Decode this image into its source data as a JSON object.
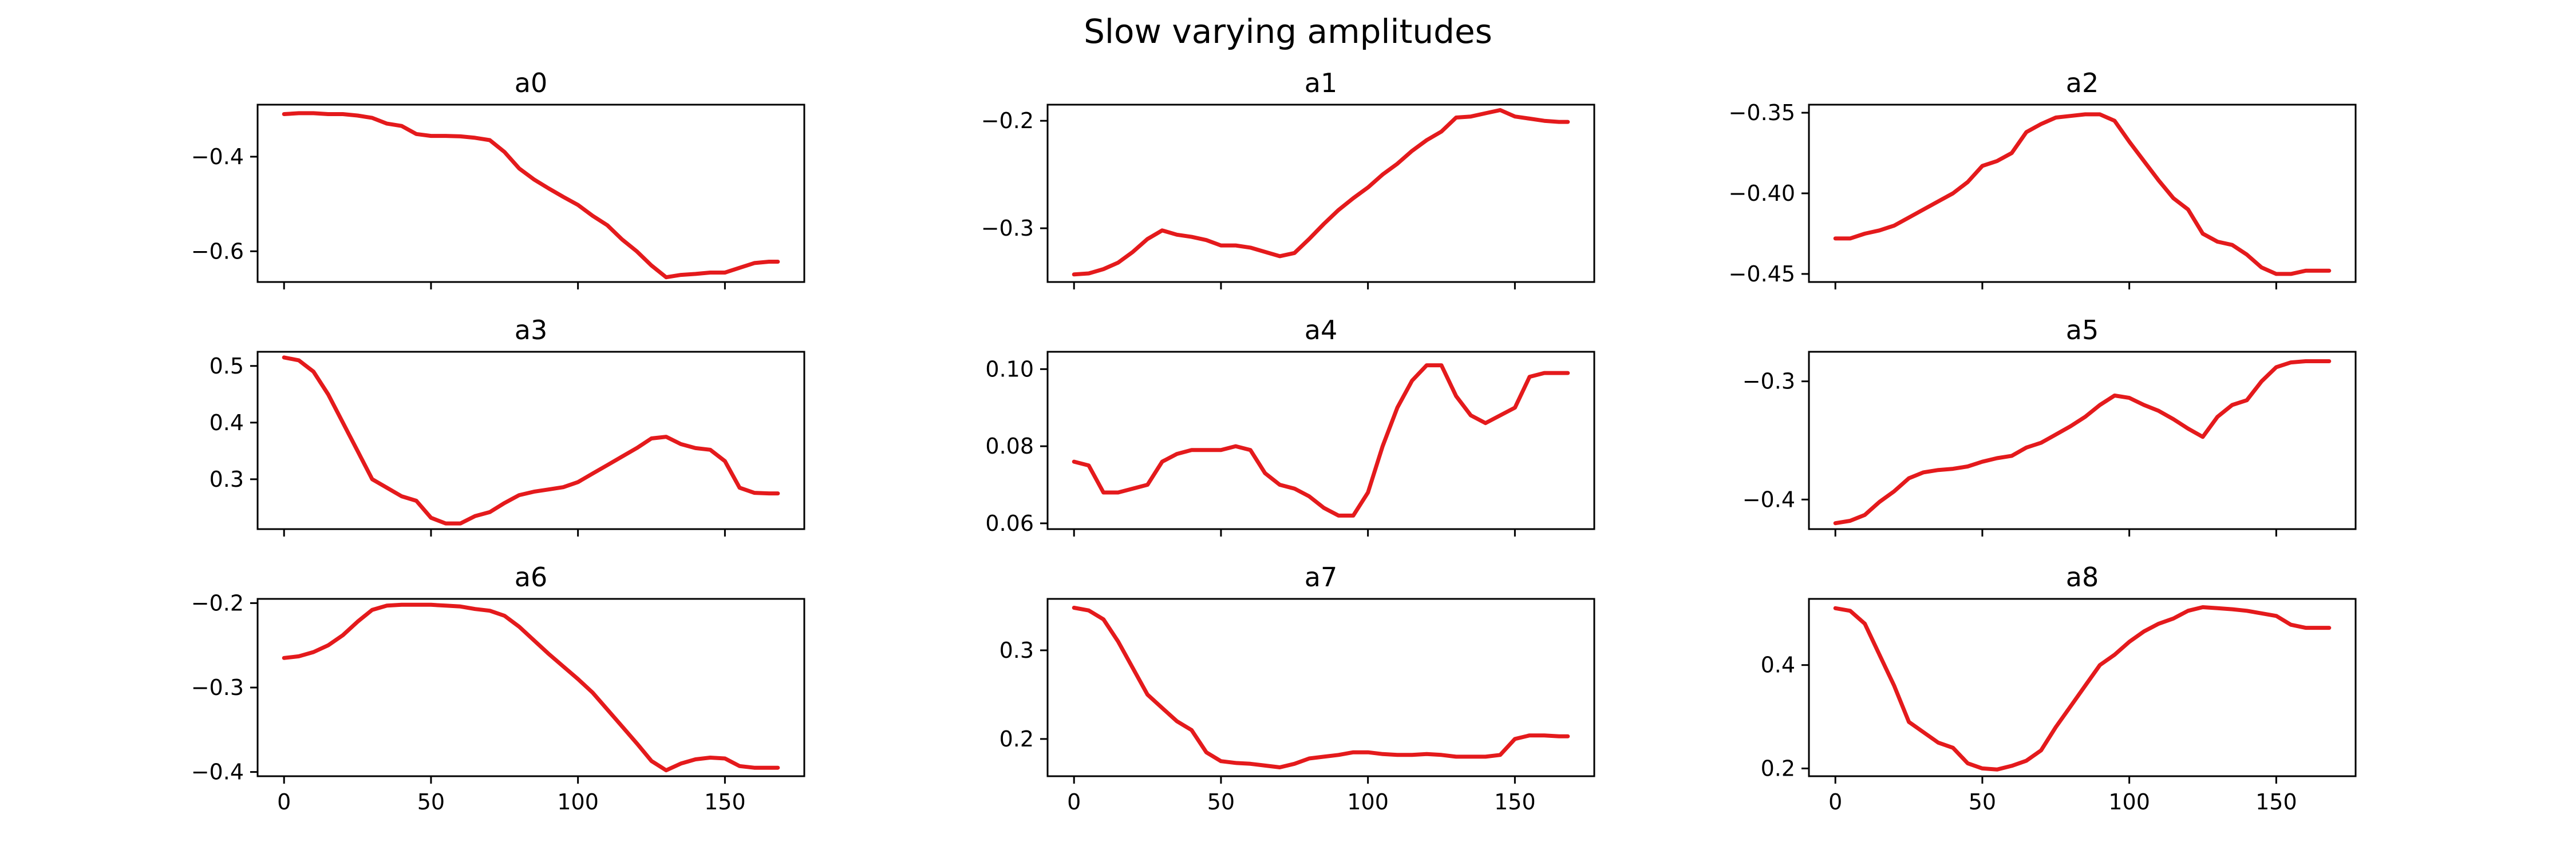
{
  "title": "Slow varying amplitudes",
  "colors": {
    "line": "#e41a1c"
  },
  "chart_data": [
    {
      "type": "line",
      "title": "a0",
      "x": [
        0,
        5,
        10,
        15,
        20,
        25,
        30,
        35,
        40,
        45,
        50,
        55,
        60,
        65,
        70,
        75,
        80,
        85,
        90,
        95,
        100,
        105,
        110,
        115,
        120,
        125,
        130,
        135,
        140,
        145,
        150,
        155,
        160,
        165,
        168
      ],
      "values": [
        -0.31,
        -0.308,
        -0.308,
        -0.31,
        -0.31,
        -0.313,
        -0.318,
        -0.33,
        -0.335,
        -0.352,
        -0.356,
        -0.356,
        -0.357,
        -0.36,
        -0.365,
        -0.39,
        -0.425,
        -0.448,
        -0.467,
        -0.485,
        -0.502,
        -0.525,
        -0.545,
        -0.575,
        -0.6,
        -0.63,
        -0.655,
        -0.65,
        -0.648,
        -0.645,
        -0.645,
        -0.635,
        -0.625,
        -0.622,
        -0.622
      ],
      "xlim": [
        -9,
        177
      ],
      "ylim": [
        -0.665,
        -0.29
      ],
      "xticks": [
        0,
        50,
        100,
        150
      ],
      "xtick_labels": [
        "",
        "",
        "",
        ""
      ],
      "yticks": [
        -0.4,
        -0.6
      ],
      "ytick_labels": [
        "−0.4",
        "−0.6"
      ]
    },
    {
      "type": "line",
      "title": "a1",
      "x": [
        0,
        5,
        10,
        15,
        20,
        25,
        30,
        35,
        40,
        45,
        50,
        55,
        60,
        65,
        70,
        75,
        80,
        85,
        90,
        95,
        100,
        105,
        110,
        115,
        120,
        125,
        130,
        135,
        140,
        145,
        150,
        155,
        160,
        165,
        168
      ],
      "values": [
        -0.343,
        -0.342,
        -0.338,
        -0.332,
        -0.322,
        -0.31,
        -0.302,
        -0.306,
        -0.308,
        -0.311,
        -0.316,
        -0.316,
        -0.318,
        -0.322,
        -0.326,
        -0.323,
        -0.31,
        -0.296,
        -0.283,
        -0.272,
        -0.262,
        -0.25,
        -0.24,
        -0.228,
        -0.218,
        -0.21,
        -0.197,
        -0.196,
        -0.193,
        -0.19,
        -0.196,
        -0.198,
        -0.2,
        -0.201,
        -0.201
      ],
      "xlim": [
        -9,
        177
      ],
      "ylim": [
        -0.35,
        -0.185
      ],
      "xticks": [
        0,
        50,
        100,
        150
      ],
      "xtick_labels": [
        "",
        "",
        "",
        ""
      ],
      "yticks": [
        -0.2,
        -0.3
      ],
      "ytick_labels": [
        "−0.2",
        "−0.3"
      ]
    },
    {
      "type": "line",
      "title": "a2",
      "x": [
        0,
        5,
        10,
        15,
        20,
        25,
        30,
        35,
        40,
        45,
        50,
        55,
        60,
        65,
        70,
        75,
        80,
        85,
        90,
        95,
        100,
        105,
        110,
        115,
        120,
        125,
        130,
        135,
        140,
        145,
        150,
        155,
        160,
        165,
        168
      ],
      "values": [
        -0.428,
        -0.428,
        -0.425,
        -0.423,
        -0.42,
        -0.415,
        -0.41,
        -0.405,
        -0.4,
        -0.393,
        -0.383,
        -0.38,
        -0.375,
        -0.362,
        -0.357,
        -0.353,
        -0.352,
        -0.351,
        -0.351,
        -0.355,
        -0.368,
        -0.38,
        -0.392,
        -0.403,
        -0.41,
        -0.425,
        -0.43,
        -0.432,
        -0.438,
        -0.446,
        -0.45,
        -0.45,
        -0.448,
        -0.448,
        -0.448
      ],
      "xlim": [
        -9,
        177
      ],
      "ylim": [
        -0.455,
        -0.345
      ],
      "xticks": [
        0,
        50,
        100,
        150
      ],
      "xtick_labels": [
        "",
        "",
        "",
        ""
      ],
      "yticks": [
        -0.35,
        -0.4,
        -0.45
      ],
      "ytick_labels": [
        "−0.35",
        "−0.40",
        "−0.45"
      ]
    },
    {
      "type": "line",
      "title": "a3",
      "x": [
        0,
        5,
        10,
        15,
        20,
        25,
        30,
        35,
        40,
        45,
        50,
        55,
        60,
        65,
        70,
        75,
        80,
        85,
        90,
        95,
        100,
        105,
        110,
        115,
        120,
        125,
        130,
        135,
        140,
        145,
        150,
        155,
        160,
        165,
        168
      ],
      "values": [
        0.515,
        0.51,
        0.49,
        0.45,
        0.4,
        0.35,
        0.3,
        0.285,
        0.27,
        0.262,
        0.232,
        0.222,
        0.222,
        0.235,
        0.242,
        0.258,
        0.272,
        0.278,
        0.282,
        0.286,
        0.295,
        0.31,
        0.325,
        0.34,
        0.355,
        0.372,
        0.375,
        0.362,
        0.355,
        0.352,
        0.332,
        0.285,
        0.276,
        0.275,
        0.275
      ],
      "xlim": [
        -9,
        177
      ],
      "ylim": [
        0.212,
        0.525
      ],
      "xticks": [
        0,
        50,
        100,
        150
      ],
      "xtick_labels": [
        "",
        "",
        "",
        ""
      ],
      "yticks": [
        0.5,
        0.4,
        0.3
      ],
      "ytick_labels": [
        "0.5",
        "0.4",
        "0.3"
      ]
    },
    {
      "type": "line",
      "title": "a4",
      "x": [
        0,
        5,
        10,
        15,
        20,
        25,
        30,
        35,
        40,
        45,
        50,
        55,
        60,
        65,
        70,
        75,
        80,
        85,
        90,
        95,
        100,
        105,
        110,
        115,
        120,
        125,
        130,
        135,
        140,
        145,
        150,
        155,
        160,
        165,
        168
      ],
      "values": [
        0.076,
        0.075,
        0.068,
        0.068,
        0.069,
        0.07,
        0.076,
        0.078,
        0.079,
        0.079,
        0.079,
        0.08,
        0.079,
        0.073,
        0.07,
        0.069,
        0.067,
        0.064,
        0.062,
        0.062,
        0.068,
        0.08,
        0.09,
        0.097,
        0.101,
        0.101,
        0.093,
        0.088,
        0.086,
        0.088,
        0.09,
        0.098,
        0.099,
        0.099,
        0.099
      ],
      "xlim": [
        -9,
        177
      ],
      "ylim": [
        0.0585,
        0.1045
      ],
      "xticks": [
        0,
        50,
        100,
        150
      ],
      "xtick_labels": [
        "",
        "",
        "",
        ""
      ],
      "yticks": [
        0.1,
        0.08,
        0.06
      ],
      "ytick_labels": [
        "0.10",
        "0.08",
        "0.06"
      ]
    },
    {
      "type": "line",
      "title": "a5",
      "x": [
        0,
        5,
        10,
        15,
        20,
        25,
        30,
        35,
        40,
        45,
        50,
        55,
        60,
        65,
        70,
        75,
        80,
        85,
        90,
        95,
        100,
        105,
        110,
        115,
        120,
        125,
        130,
        135,
        140,
        145,
        150,
        155,
        160,
        165,
        168
      ],
      "values": [
        -0.42,
        -0.418,
        -0.413,
        -0.402,
        -0.393,
        -0.382,
        -0.377,
        -0.375,
        -0.374,
        -0.372,
        -0.368,
        -0.365,
        -0.363,
        -0.356,
        -0.352,
        -0.345,
        -0.338,
        -0.33,
        -0.32,
        -0.312,
        -0.314,
        -0.32,
        -0.325,
        -0.332,
        -0.34,
        -0.347,
        -0.33,
        -0.32,
        -0.316,
        -0.3,
        -0.288,
        -0.284,
        -0.283,
        -0.283,
        -0.283
      ],
      "xlim": [
        -9,
        177
      ],
      "ylim": [
        -0.425,
        -0.275
      ],
      "xticks": [
        0,
        50,
        100,
        150
      ],
      "xtick_labels": [
        "",
        "",
        "",
        ""
      ],
      "yticks": [
        -0.3,
        -0.4
      ],
      "ytick_labels": [
        "−0.3",
        "−0.4"
      ]
    },
    {
      "type": "line",
      "title": "a6",
      "x": [
        0,
        5,
        10,
        15,
        20,
        25,
        30,
        35,
        40,
        45,
        50,
        55,
        60,
        65,
        70,
        75,
        80,
        85,
        90,
        95,
        100,
        105,
        110,
        115,
        120,
        125,
        130,
        135,
        140,
        145,
        150,
        155,
        160,
        165,
        168
      ],
      "values": [
        -0.265,
        -0.263,
        -0.258,
        -0.25,
        -0.238,
        -0.222,
        -0.208,
        -0.203,
        -0.202,
        -0.202,
        -0.202,
        -0.203,
        -0.204,
        -0.207,
        -0.209,
        -0.215,
        -0.228,
        -0.244,
        -0.26,
        -0.275,
        -0.29,
        -0.306,
        -0.326,
        -0.346,
        -0.366,
        -0.387,
        -0.398,
        -0.39,
        -0.385,
        -0.383,
        -0.384,
        -0.393,
        -0.395,
        -0.395,
        -0.395
      ],
      "xlim": [
        -9,
        177
      ],
      "ylim": [
        -0.405,
        -0.195
      ],
      "xticks": [
        0,
        50,
        100,
        150
      ],
      "xtick_labels": [
        "0",
        "50",
        "100",
        "150"
      ],
      "yticks": [
        -0.2,
        -0.3,
        -0.4
      ],
      "ytick_labels": [
        "−0.2",
        "−0.3",
        "−0.4"
      ]
    },
    {
      "type": "line",
      "title": "a7",
      "x": [
        0,
        5,
        10,
        15,
        20,
        25,
        30,
        35,
        40,
        45,
        50,
        55,
        60,
        65,
        70,
        75,
        80,
        85,
        90,
        95,
        100,
        105,
        110,
        115,
        120,
        125,
        130,
        135,
        140,
        145,
        150,
        155,
        160,
        165,
        168
      ],
      "values": [
        0.348,
        0.345,
        0.335,
        0.31,
        0.28,
        0.25,
        0.235,
        0.22,
        0.21,
        0.185,
        0.175,
        0.173,
        0.172,
        0.17,
        0.168,
        0.172,
        0.178,
        0.18,
        0.182,
        0.185,
        0.185,
        0.183,
        0.182,
        0.182,
        0.183,
        0.182,
        0.18,
        0.18,
        0.18,
        0.182,
        0.2,
        0.204,
        0.204,
        0.203,
        0.203
      ],
      "xlim": [
        -9,
        177
      ],
      "ylim": [
        0.158,
        0.358
      ],
      "xticks": [
        0,
        50,
        100,
        150
      ],
      "xtick_labels": [
        "0",
        "50",
        "100",
        "150"
      ],
      "yticks": [
        0.3,
        0.2
      ],
      "ytick_labels": [
        "0.3",
        "0.2"
      ]
    },
    {
      "type": "line",
      "title": "a8",
      "x": [
        0,
        5,
        10,
        15,
        20,
        25,
        30,
        35,
        40,
        45,
        50,
        55,
        60,
        65,
        70,
        75,
        80,
        85,
        90,
        95,
        100,
        105,
        110,
        115,
        120,
        125,
        130,
        135,
        140,
        145,
        150,
        155,
        160,
        165,
        168
      ],
      "values": [
        0.51,
        0.505,
        0.48,
        0.42,
        0.36,
        0.29,
        0.27,
        0.25,
        0.24,
        0.21,
        0.2,
        0.198,
        0.205,
        0.215,
        0.235,
        0.28,
        0.32,
        0.36,
        0.4,
        0.42,
        0.445,
        0.465,
        0.48,
        0.49,
        0.505,
        0.512,
        0.51,
        0.508,
        0.505,
        0.5,
        0.495,
        0.478,
        0.472,
        0.472,
        0.472
      ],
      "xlim": [
        -9,
        177
      ],
      "ylim": [
        0.185,
        0.528
      ],
      "xticks": [
        0,
        50,
        100,
        150
      ],
      "xtick_labels": [
        "0",
        "50",
        "100",
        "150"
      ],
      "yticks": [
        0.4,
        0.2
      ],
      "ytick_labels": [
        "0.4",
        "0.2"
      ]
    }
  ]
}
